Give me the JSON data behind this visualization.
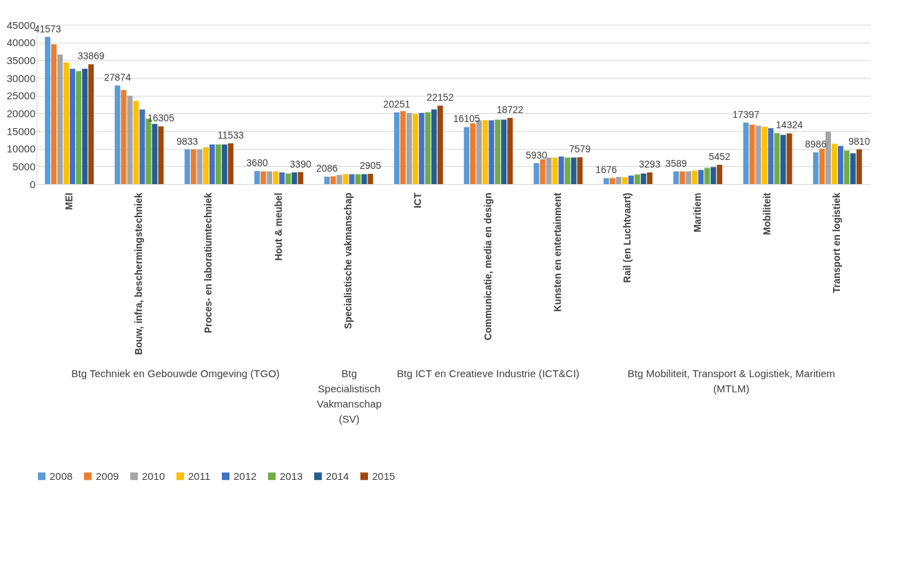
{
  "chart_data": {
    "type": "bar",
    "categories": [
      "MEI",
      "Bouw, infra, beschermingstechniek",
      "Proces- en laboratiumtechniek",
      "Hout & meubel",
      "Specialistische vakmanschap",
      "ICT",
      "Communicatie, media en design",
      "Kunsten en entertainment",
      "Rail (en Luchtvaart)",
      "Maritiem",
      "Mobiliteit",
      "Transport en logistiek"
    ],
    "series": [
      {
        "name": "2008",
        "color": "#5b9bd5",
        "values": [
          41573,
          27874,
          9833,
          3680,
          2086,
          20251,
          16105,
          5930,
          1676,
          3589,
          17397,
          8986
        ],
        "value_labels": [
          "41573",
          "27874",
          "9833",
          "3680",
          "2086",
          "20251",
          "16105",
          "5930",
          "1676",
          "3589",
          "17397",
          "8986"
        ]
      },
      {
        "name": "2009",
        "color": "#ed7d31",
        "values": [
          39500,
          26600,
          9800,
          3600,
          2200,
          20600,
          17200,
          7000,
          1700,
          3600,
          16800,
          10000
        ]
      },
      {
        "name": "2010",
        "color": "#a5a5a5",
        "values": [
          36600,
          25000,
          9800,
          3600,
          2600,
          20100,
          18000,
          7500,
          2000,
          3600,
          16500,
          14800
        ]
      },
      {
        "name": "2011",
        "color": "#ffc000",
        "values": [
          34400,
          23500,
          10400,
          3600,
          2800,
          19800,
          18000,
          7500,
          2000,
          3800,
          16200,
          11400
        ]
      },
      {
        "name": "2012",
        "color": "#4472c4",
        "values": [
          32600,
          21100,
          11200,
          3300,
          2800,
          20100,
          18000,
          7800,
          2400,
          4000,
          15800,
          10800
        ]
      },
      {
        "name": "2013",
        "color": "#70ad47",
        "values": [
          31900,
          18500,
          11200,
          3000,
          2800,
          20300,
          18200,
          7500,
          2700,
          4600,
          14400,
          9500
        ]
      },
      {
        "name": "2014",
        "color": "#255e91",
        "values": [
          32600,
          17000,
          11200,
          3300,
          2800,
          21100,
          18200,
          7500,
          3000,
          4800,
          13900,
          8700
        ]
      },
      {
        "name": "2015",
        "color": "#9e480e",
        "values": [
          33869,
          16305,
          11533,
          3390,
          2905,
          22152,
          18722,
          7579,
          3293,
          5452,
          14324,
          9810
        ],
        "value_labels": [
          "33869",
          "16305",
          "11533",
          "3390",
          "2905",
          "22152",
          "18722",
          "7579",
          "3293",
          "5452",
          "14324",
          "9810"
        ]
      }
    ],
    "ylim": [
      0,
      45000
    ],
    "yticks": [
      0,
      5000,
      10000,
      15000,
      20000,
      25000,
      30000,
      35000,
      40000,
      45000
    ],
    "grid": "y",
    "legend": "bottom",
    "annotations": [
      "Btg Techniek en Gebouwde Omgeving (TGO)",
      "Btg Specialistisch Vakmanschap (SV)",
      "Btg ICT en Creatieve Industrie (ICT&CI)",
      "Btg Mobiliteit, Transport & Logistiek, Maritiem (MTLM)"
    ]
  }
}
